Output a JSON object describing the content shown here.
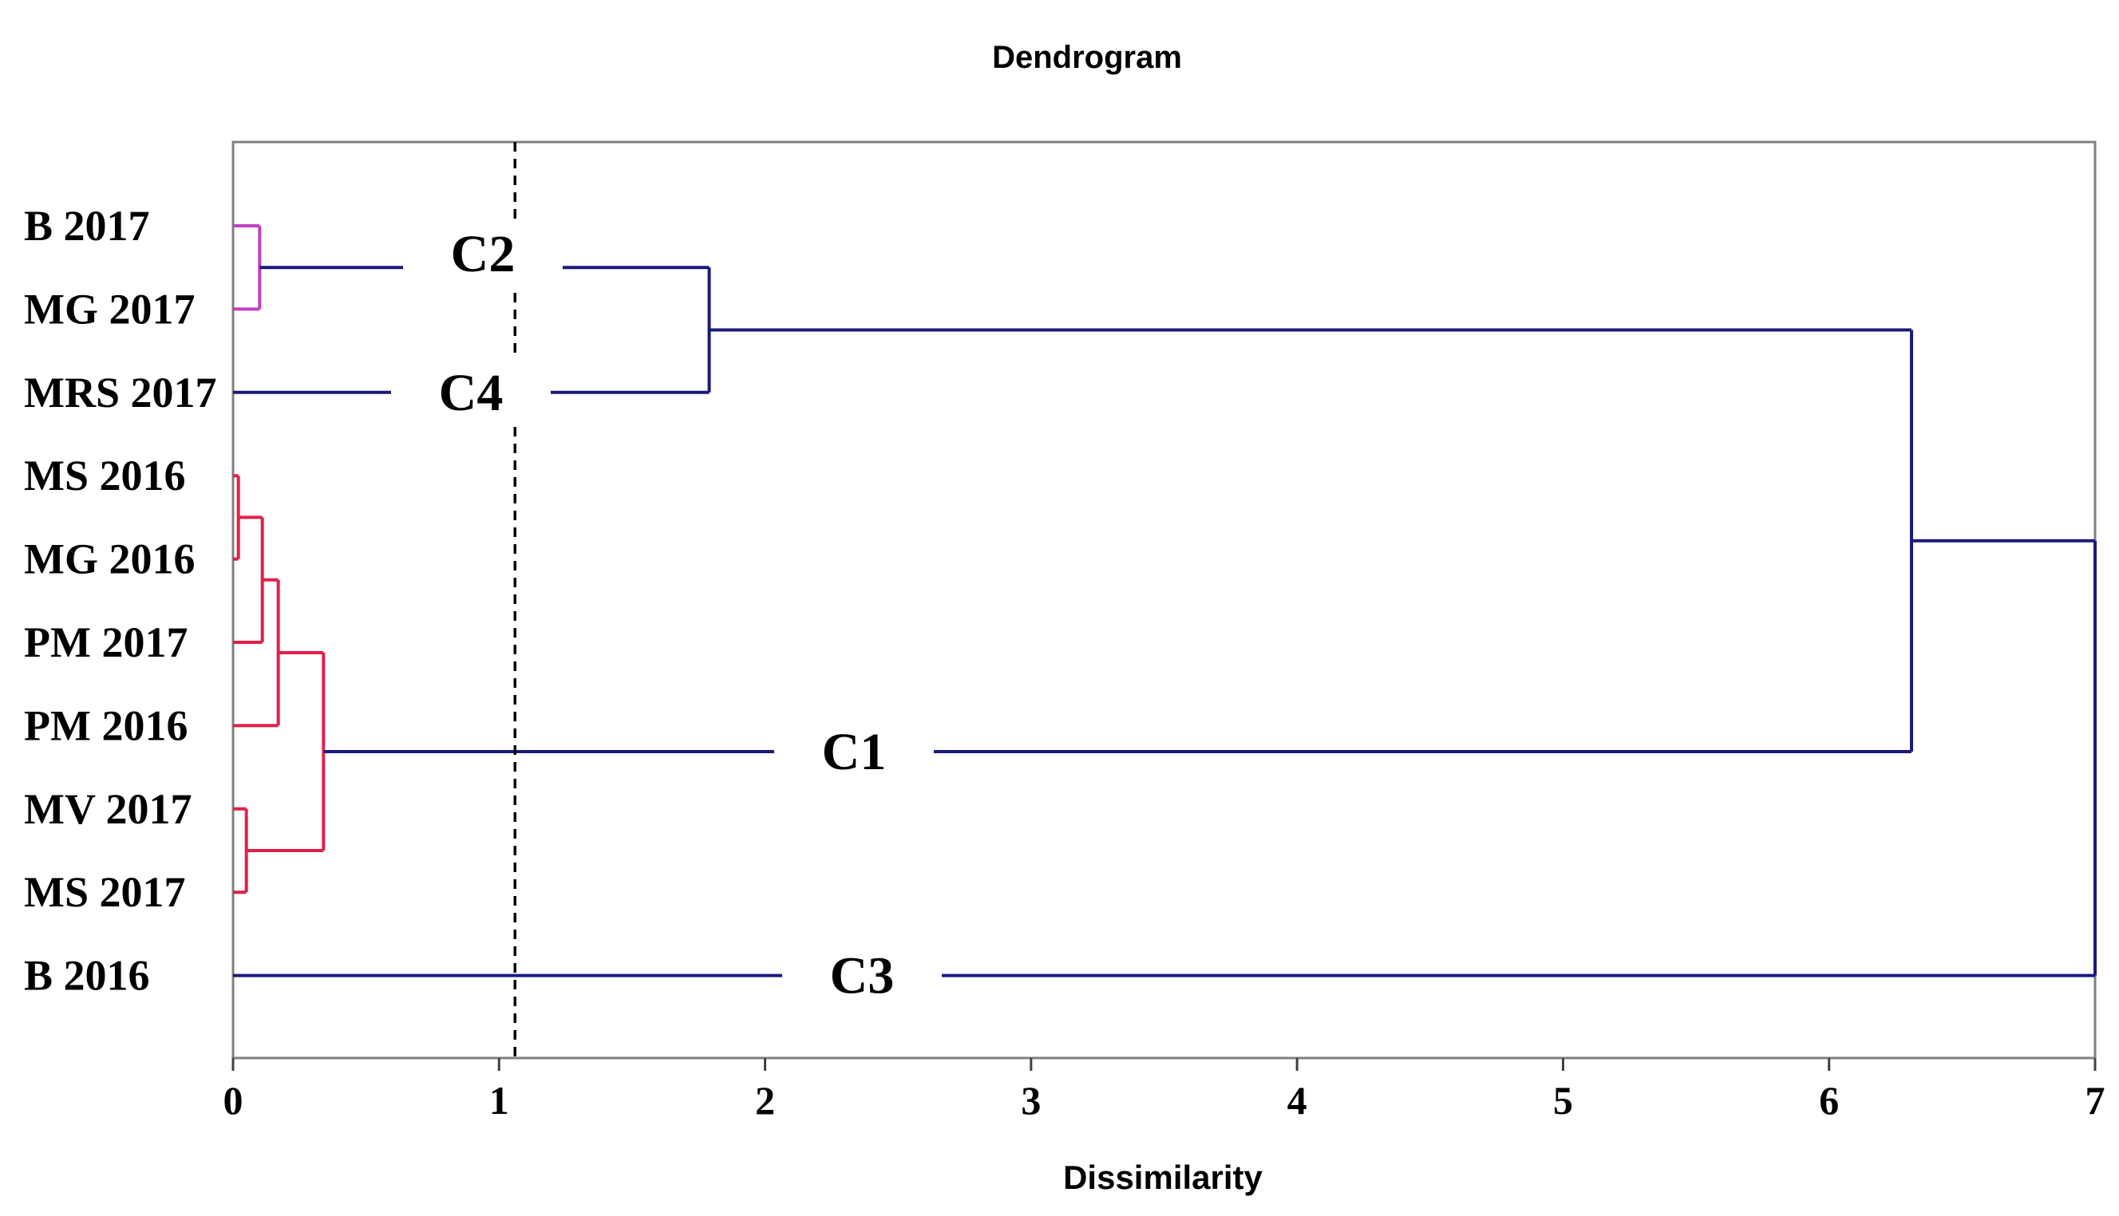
{
  "chart_data": {
    "type": "dendrogram",
    "title": "Dendrogram",
    "xlabel": "Dissimilarity",
    "ylabel": "",
    "xlim": [
      0,
      7
    ],
    "x_ticks": [
      "0",
      "1",
      "2",
      "3",
      "4",
      "5",
      "6",
      "7"
    ],
    "grid": false,
    "cut_line": {
      "value": 1.06,
      "style": "dashed"
    },
    "leaves": [
      "B 2017",
      "MG 2017",
      "MRS 2017",
      "MS 2016",
      "MG 2016",
      "PM 2017",
      "PM 2016",
      "MV 2017",
      "MS 2017",
      "B 2016"
    ],
    "merges": [
      {
        "id": "m1",
        "left": "B 2017",
        "right": "MG 2017",
        "height": 0.1,
        "color": "#c040c0"
      },
      {
        "id": "m2",
        "left": "m1",
        "right": "MRS 2017",
        "height": 1.79,
        "color": "#1a1a7a"
      },
      {
        "id": "m3",
        "left": "MS 2016",
        "right": "MG 2016",
        "height": 0.02,
        "color": "#e0204a"
      },
      {
        "id": "m4",
        "left": "m3",
        "right": "PM 2017",
        "height": 0.11,
        "color": "#e0204a"
      },
      {
        "id": "m5",
        "left": "m4",
        "right": "PM 2016",
        "height": 0.17,
        "color": "#e0204a"
      },
      {
        "id": "m6",
        "left": "MV 2017",
        "right": "MS 2017",
        "height": 0.05,
        "color": "#e0204a"
      },
      {
        "id": "m7",
        "left": "m5",
        "right": "m6",
        "height": 0.34,
        "color": "#e0204a"
      },
      {
        "id": "m8",
        "left": "m2",
        "right": "m7",
        "height": 6.31,
        "color": "#1a1a7a"
      },
      {
        "id": "m9",
        "left": "m8",
        "right": "B 2016",
        "height": 7.0,
        "color": "#1a1a7a"
      }
    ],
    "clusters": [
      {
        "label": "C1",
        "node": "m7"
      },
      {
        "label": "C2",
        "node": "m1"
      },
      {
        "label": "C3",
        "node": "B 2016"
      },
      {
        "label": "C4",
        "node": "MRS 2017"
      }
    ]
  },
  "colors": {
    "axis": "#808080",
    "tick": "#404040",
    "main_branch": "#1a1a7a",
    "cluster_c1": "#e0204a",
    "cluster_c2": "#c040c0",
    "cut_line": "#000000"
  }
}
